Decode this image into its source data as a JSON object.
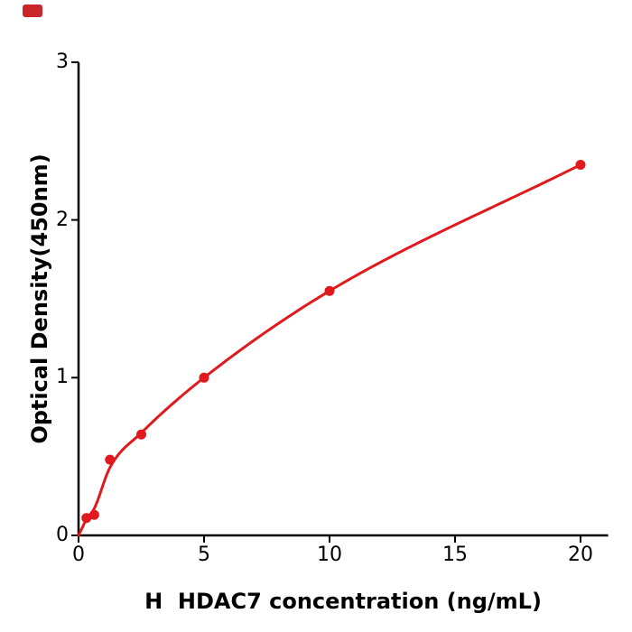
{
  "corner_marker": {
    "color": "#c9252b"
  },
  "chart_data": {
    "type": "scatter",
    "title": "",
    "xlabel": "H  HDAC7 concentration (ng/mL)",
    "ylabel": "Optical Density(450nm)",
    "xlim": [
      0,
      21.1
    ],
    "ylim": [
      0,
      3
    ],
    "xticks": [
      0,
      5,
      10,
      15,
      20
    ],
    "yticks": [
      0,
      1,
      2,
      3
    ],
    "grid": false,
    "legend": "none",
    "axis_color": "#000000",
    "tick_label_color": "#000000",
    "series": [
      {
        "marker": "circle",
        "color": "#e1191c",
        "x": [
          0.313,
          0.625,
          1.25,
          2.5,
          5,
          10,
          20
        ],
        "y": [
          0.11,
          0.13,
          0.48,
          0.64,
          1.0,
          1.55,
          2.35
        ]
      }
    ],
    "fit_curve": {
      "color": "#e1191c",
      "x": [
        0,
        0.313,
        0.625,
        1.25,
        2.5,
        5,
        10,
        20
      ],
      "y": [
        0,
        0.1,
        0.17,
        0.43,
        0.65,
        1.0,
        1.55,
        2.35
      ]
    }
  }
}
